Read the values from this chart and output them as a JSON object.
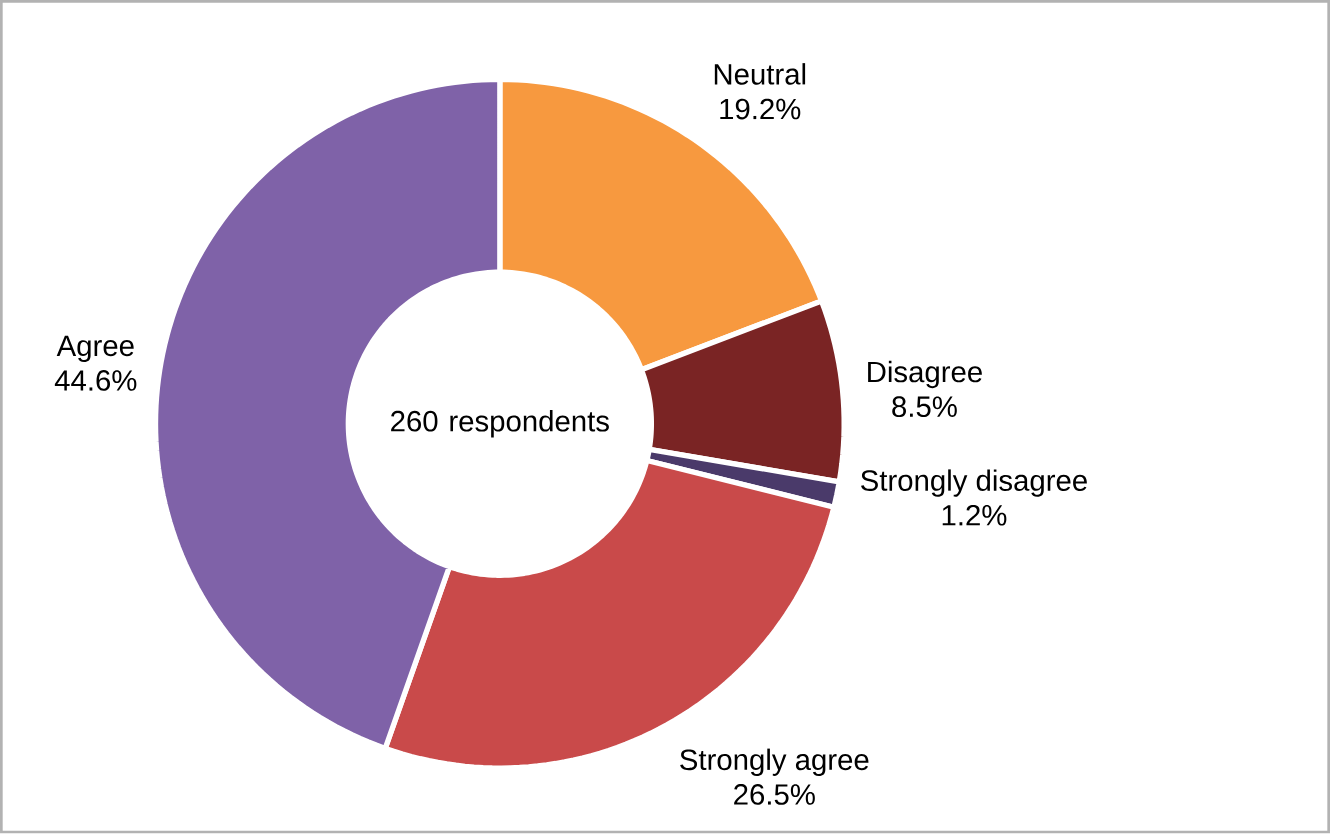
{
  "chart_data": {
    "type": "donut",
    "categories": [
      "Neutral",
      "Disagree",
      "Strongly disagree",
      "Strongly agree",
      "Agree"
    ],
    "values": [
      19.2,
      8.5,
      1.2,
      26.5,
      44.6
    ],
    "value_labels": [
      "19.2%",
      "8.5%",
      "1.2%",
      "26.5%",
      "44.6%"
    ],
    "colors": [
      "#f7993f",
      "#7a2424",
      "#4a3a6a",
      "#c94a4a",
      "#7f62a8"
    ],
    "annotations": [
      "260 respondents"
    ]
  }
}
